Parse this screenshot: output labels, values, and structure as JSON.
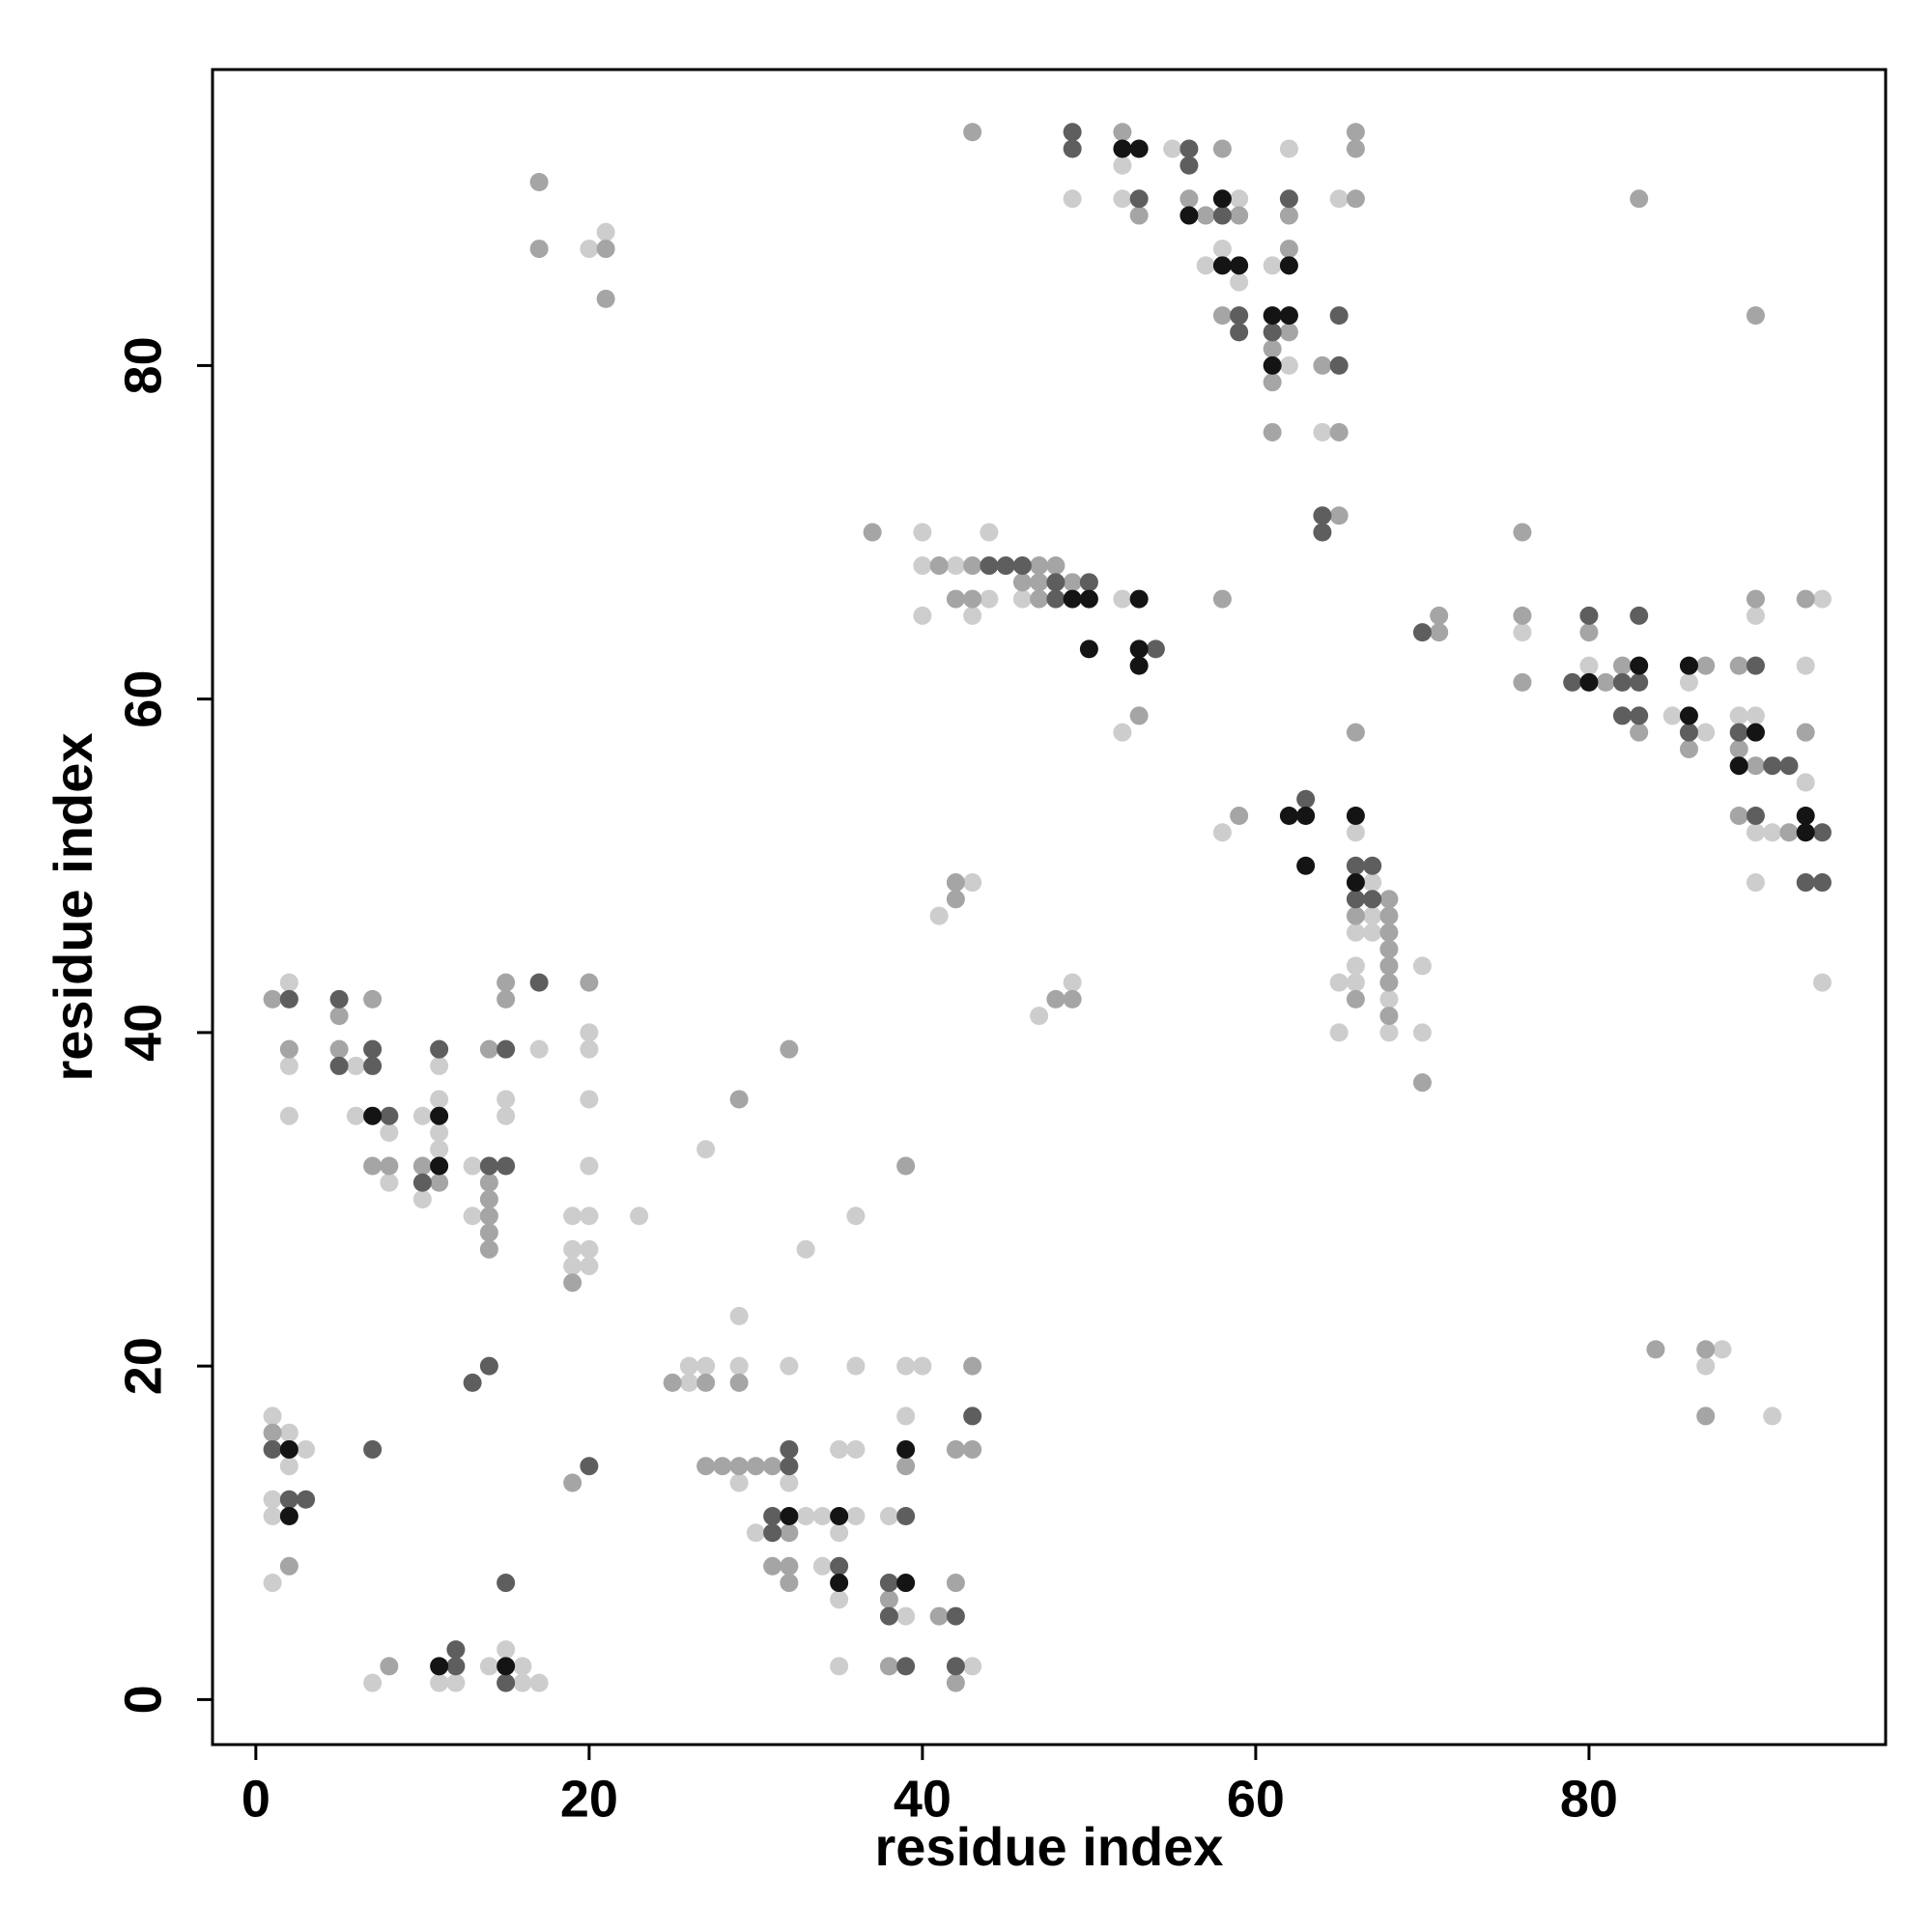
{
  "chart_data": {
    "type": "scatter",
    "xlabel": "residue index",
    "ylabel": "residue index",
    "xlim": [
      -2.6,
      97.8
    ],
    "ylim": [
      -2.7,
      97.75
    ],
    "xticks": [
      0,
      20,
      40,
      60,
      80
    ],
    "yticks": [
      0,
      20,
      40,
      60,
      80
    ],
    "grid": false,
    "series": [
      {
        "color": "#cdcdcd",
        "x": [
          49,
          52,
          52,
          55,
          59,
          57,
          58,
          59,
          61,
          62,
          62,
          64,
          65,
          20,
          21,
          40,
          44,
          40,
          42,
          40,
          44,
          43,
          46,
          52,
          52,
          76,
          80,
          85,
          86,
          87,
          89,
          90,
          90,
          90,
          90,
          91,
          93,
          93,
          94,
          94,
          58,
          66,
          67,
          67,
          66,
          67,
          66,
          65,
          66,
          68,
          65,
          68,
          70,
          70,
          41,
          43,
          47,
          49,
          2,
          2,
          2,
          6,
          6,
          8,
          8,
          10,
          11,
          11,
          11,
          10,
          11,
          13,
          13,
          15,
          15,
          17,
          20,
          20,
          20,
          20,
          19,
          20,
          19,
          20,
          19,
          20,
          23,
          27,
          33,
          36,
          1,
          2,
          3,
          2,
          1,
          1,
          1,
          7,
          11,
          12,
          14,
          15,
          16,
          16,
          17,
          26,
          26,
          27,
          29,
          29,
          32,
          36,
          39,
          40,
          29,
          32,
          35,
          36,
          39,
          30,
          33,
          34,
          35,
          36,
          38,
          34,
          35,
          39,
          35,
          43,
          88,
          87,
          91
        ],
        "values": [
          90,
          92,
          90,
          93,
          90,
          86,
          87,
          85,
          86,
          93,
          80,
          76,
          90,
          87,
          88,
          70,
          70,
          68,
          68,
          65,
          66,
          65,
          66,
          66,
          58,
          64,
          62,
          59,
          61,
          58,
          59,
          59,
          52,
          49,
          65,
          52,
          55,
          62,
          66,
          43,
          52,
          52,
          49,
          47,
          46,
          46,
          44,
          43,
          43,
          42,
          40,
          40,
          44,
          40,
          47,
          49,
          41,
          43,
          43,
          38,
          35,
          38,
          35,
          34,
          31,
          35,
          36,
          34,
          33,
          30,
          38,
          32,
          29,
          36,
          35,
          39,
          40,
          39,
          36,
          32,
          29,
          29,
          27,
          27,
          26,
          26,
          29,
          33,
          27,
          29,
          17,
          16,
          15,
          14,
          12,
          11,
          7,
          1,
          1,
          1,
          2,
          3,
          2,
          1,
          1,
          20,
          19,
          20,
          23,
          20,
          20,
          20,
          20,
          20,
          13,
          13,
          15,
          15,
          17,
          10,
          11,
          11,
          10,
          11,
          11,
          8,
          6,
          5,
          2,
          2,
          21,
          20,
          17
        ]
      },
      {
        "color": "#a5a5a5",
        "x": [
          43,
          52,
          53,
          56,
          57,
          58,
          59,
          62,
          62,
          58,
          62,
          61,
          61,
          61,
          64,
          65,
          65,
          66,
          66,
          66,
          17,
          17,
          21,
          21,
          83,
          90,
          37,
          41,
          43,
          47,
          48,
          42,
          43,
          46,
          47,
          49,
          47,
          53,
          58,
          71,
          71,
          76,
          76,
          76,
          80,
          81,
          82,
          83,
          86,
          87,
          89,
          89,
          90,
          89,
          90,
          92,
          93,
          93,
          59,
          66,
          68,
          66,
          68,
          68,
          68,
          68,
          68,
          66,
          68,
          70,
          42,
          42,
          48,
          49,
          1,
          2,
          5,
          5,
          7,
          7,
          8,
          10,
          11,
          14,
          14,
          14,
          14,
          14,
          14,
          15,
          15,
          20,
          19,
          29,
          32,
          39,
          1,
          2,
          19,
          8,
          25,
          27,
          29,
          43,
          27,
          28,
          29,
          30,
          31,
          39,
          42,
          43,
          32,
          31,
          32,
          32,
          38,
          41,
          42,
          38,
          42,
          84,
          87,
          87
        ],
        "values": [
          94,
          94,
          89,
          90,
          89,
          93,
          89,
          87,
          89,
          83,
          82,
          81,
          79,
          76,
          80,
          76,
          71,
          90,
          94,
          93,
          91,
          87,
          87,
          84,
          90,
          83,
          70,
          68,
          68,
          68,
          68,
          66,
          66,
          67,
          67,
          67,
          66,
          59,
          66,
          65,
          64,
          70,
          65,
          61,
          64,
          61,
          62,
          58,
          57,
          62,
          62,
          57,
          56,
          53,
          66,
          52,
          58,
          66,
          53,
          58,
          48,
          47,
          47,
          46,
          45,
          44,
          43,
          42,
          41,
          37,
          49,
          48,
          42,
          42,
          42,
          39,
          41,
          39,
          42,
          32,
          32,
          32,
          31,
          31,
          30,
          29,
          28,
          27,
          39,
          43,
          42,
          43,
          25,
          36,
          39,
          32,
          16,
          8,
          13,
          2,
          19,
          19,
          19,
          20,
          14,
          14,
          14,
          14,
          14,
          14,
          15,
          15,
          10,
          8,
          8,
          7,
          6,
          5,
          7,
          2,
          1,
          21,
          21,
          17
        ]
      },
      {
        "color": "#5e5e5e",
        "x": [
          49,
          49,
          53,
          56,
          56,
          58,
          62,
          59,
          59,
          61,
          65,
          65,
          64,
          64,
          44,
          45,
          46,
          48,
          50,
          48,
          54,
          70,
          79,
          80,
          82,
          83,
          83,
          82,
          83,
          86,
          90,
          89,
          90,
          91,
          92,
          94,
          93,
          94,
          63,
          66,
          67,
          66,
          67,
          2,
          5,
          5,
          7,
          7,
          8,
          10,
          11,
          14,
          15,
          15,
          17,
          1,
          2,
          3,
          7,
          13,
          14,
          20,
          15,
          12,
          12,
          15,
          32,
          32,
          43,
          31,
          31,
          39,
          35,
          38,
          38,
          42,
          39,
          42
        ],
        "values": [
          94,
          93,
          90,
          93,
          92,
          89,
          90,
          83,
          82,
          82,
          80,
          83,
          71,
          70,
          68,
          68,
          68,
          67,
          67,
          66,
          63,
          64,
          61,
          65,
          61,
          61,
          65,
          59,
          59,
          58,
          62,
          58,
          53,
          56,
          56,
          52,
          49,
          49,
          54,
          50,
          50,
          48,
          48,
          42,
          42,
          38,
          38,
          39,
          35,
          31,
          39,
          32,
          32,
          39,
          43,
          15,
          12,
          12,
          15,
          19,
          20,
          14,
          7,
          2,
          3,
          1,
          14,
          15,
          17,
          10,
          11,
          11,
          8,
          7,
          5,
          5,
          2,
          2
        ]
      },
      {
        "color": "#141414",
        "x": [
          52,
          53,
          56,
          58,
          58,
          59,
          62,
          61,
          62,
          61,
          49,
          50,
          50,
          53,
          53,
          53,
          80,
          83,
          86,
          86,
          90,
          89,
          93,
          93,
          62,
          63,
          63,
          66,
          66,
          7,
          11,
          11,
          2,
          2,
          11,
          15,
          39,
          32,
          35,
          35,
          39
        ],
        "values": [
          93,
          93,
          89,
          90,
          86,
          86,
          86,
          83,
          83,
          80,
          66,
          66,
          63,
          66,
          63,
          62,
          61,
          62,
          62,
          59,
          58,
          56,
          53,
          52,
          53,
          53,
          50,
          53,
          49,
          35,
          35,
          32,
          15,
          11,
          2,
          2,
          15,
          11,
          11,
          7,
          7
        ]
      }
    ]
  }
}
